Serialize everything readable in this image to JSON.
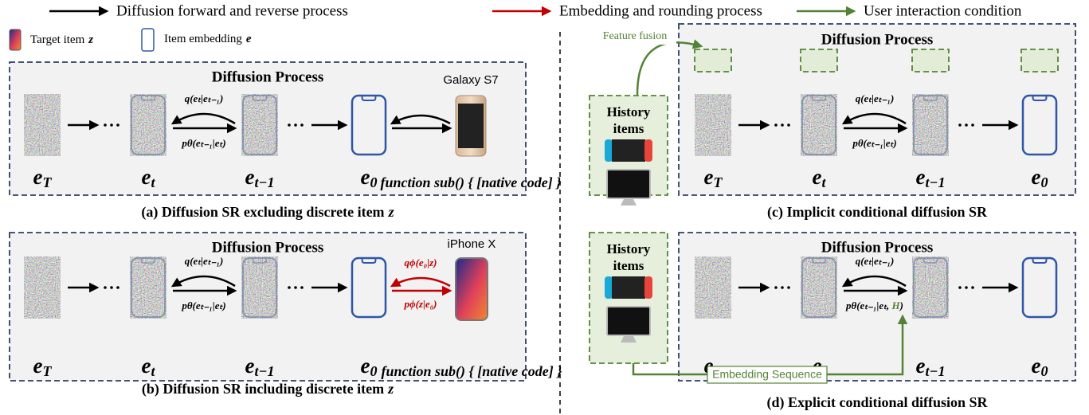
{
  "legend": {
    "forward_reverse": "Diffusion forward and reverse process",
    "embedding_rounding": "Embedding and rounding process",
    "user_condition": "User interaction condition"
  },
  "key": {
    "target": {
      "text": "Target item",
      "var": "z"
    },
    "embedding": {
      "text": "Item embedding",
      "var": "e"
    }
  },
  "panels": [
    {
      "title": "Diffusion Process",
      "nodes": [
        {
          "base": "e",
          "sub": "T"
        },
        {
          "base": "e",
          "sub": "t"
        },
        {
          "base": "e",
          "sub": "t−1"
        },
        {
          "base": "e",
          "sub": "0"
        }
      ],
      "forward": "q(eₜ|eₜ₋₁)",
      "reverse": [
        "pθ(eₜ₋₁|eₜ)"
      ],
      "item": {
        "name": "Galaxy S7",
        "var": "z"
      },
      "caption": {
        "text": "(a) Diffusion SR excluding discrete item",
        "var": "z"
      }
    },
    {
      "title": "Diffusion Process",
      "nodes": [
        {
          "base": "e",
          "sub": "T"
        },
        {
          "base": "e",
          "sub": "t"
        },
        {
          "base": "e",
          "sub": "t−1"
        },
        {
          "base": "e",
          "sub": "0"
        }
      ],
      "forward": "q(eₜ|eₜ₋₁)",
      "reverse": [
        "pθ(eₜ₋₁|eₜ)"
      ],
      "item": {
        "name": "iPhone X",
        "var": "z",
        "embed": "qϕ(e₀|z)",
        "round": "pϕ(z|e₀)"
      },
      "caption": {
        "text": "(b) Diffusion SR including discrete item",
        "var": "z"
      }
    },
    {
      "title": "Diffusion Process",
      "nodes": [
        {
          "base": "e",
          "sub": "T"
        },
        {
          "base": "e",
          "sub": "t"
        },
        {
          "base": "e",
          "sub": "t−1"
        },
        {
          "base": "e",
          "sub": "0"
        }
      ],
      "forward": "q(eₜ|eₜ₋₁)",
      "reverse": [
        "pθ(eₜ₋₁|eₜ)"
      ],
      "history": [
        "History",
        "items"
      ],
      "fusion": "Feature fusion",
      "caption": {
        "text": "(c) Implicit conditional diffusion SR"
      }
    },
    {
      "title": "Diffusion Process",
      "nodes": [
        {
          "base": "e",
          "sub": "T"
        },
        {
          "base": "e",
          "sub": "t"
        },
        {
          "base": "e",
          "sub": "t−1"
        },
        {
          "base": "e",
          "sub": "0"
        }
      ],
      "forward": "q(eₜ|eₜ₋₁)",
      "reverse": [
        "pθ(eₜ₋₁|eₜ, ",
        "H",
        ")"
      ],
      "history": [
        "History",
        "items"
      ],
      "sequence": "Embedding Sequence",
      "caption": {
        "text": "(d) Explicit conditional diffusion SR"
      }
    }
  ]
}
